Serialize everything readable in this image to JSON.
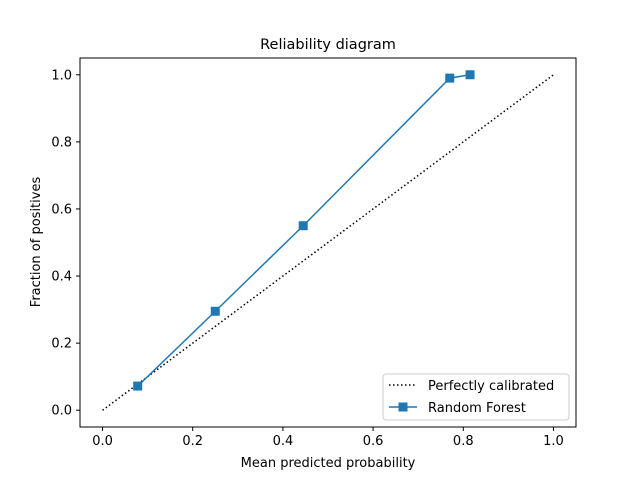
{
  "chart_data": {
    "type": "line",
    "title": "Reliability diagram",
    "xlabel": "Mean predicted probability",
    "ylabel": "Fraction of positives",
    "xlim": [
      -0.05,
      1.05
    ],
    "ylim": [
      -0.05,
      1.05
    ],
    "xticks": [
      0.0,
      0.2,
      0.4,
      0.6,
      0.8,
      1.0
    ],
    "xtick_labels": [
      "0.0",
      "0.2",
      "0.4",
      "0.6",
      "0.8",
      "1.0"
    ],
    "yticks": [
      0.0,
      0.2,
      0.4,
      0.6,
      0.8,
      1.0
    ],
    "ytick_labels": [
      "0.0",
      "0.2",
      "0.4",
      "0.6",
      "0.8",
      "1.0"
    ],
    "grid": false,
    "legend_position": "bottom-right",
    "series": [
      {
        "name": "Perfectly calibrated",
        "style": "dotted",
        "color": "#000000",
        "x": [
          0.0,
          1.0
        ],
        "y": [
          0.0,
          1.0
        ]
      },
      {
        "name": "Random Forest",
        "style": "solid",
        "marker": "square",
        "color": "#1f77b4",
        "x": [
          0.078,
          0.25,
          0.445,
          0.77,
          0.815
        ],
        "y": [
          0.072,
          0.295,
          0.55,
          0.99,
          1.0
        ]
      }
    ]
  }
}
